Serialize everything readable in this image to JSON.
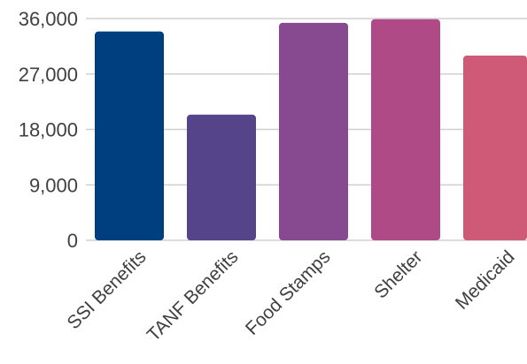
{
  "chart_data": {
    "type": "bar",
    "title": "",
    "xlabel": "",
    "ylabel": "",
    "categories": [
      "SSI Benefits",
      "TANF Benefits",
      "Food Stamps",
      "Shelter",
      "Medicaid"
    ],
    "values": [
      33900,
      20400,
      35300,
      35900,
      30000
    ],
    "colors": [
      "#003f7f",
      "#55448a",
      "#87498f",
      "#b04a86",
      "#cf5a78"
    ],
    "ylim": [
      0,
      36000
    ],
    "yticks": [
      0,
      9000,
      18000,
      27000,
      36000
    ],
    "ytick_labels": [
      "0",
      "9,000",
      "18,000",
      "27,000",
      "36,000"
    ],
    "grid": true,
    "legend": "none"
  }
}
